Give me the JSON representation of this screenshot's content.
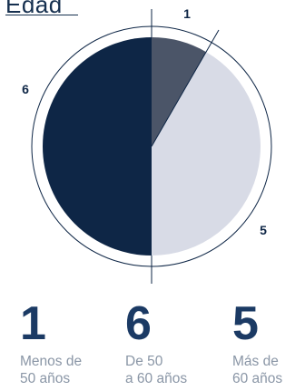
{
  "title": "Edad",
  "colors": {
    "dark": "#0e2646",
    "gray": "#4b5568",
    "light": "#d8dbe6",
    "ring": "#0e2646"
  },
  "chart_data": {
    "type": "pie",
    "title": "Edad",
    "slices": [
      {
        "label": "Menos de 50 años",
        "value": 1,
        "color": "#4b5568"
      },
      {
        "label": "Más de 60 años",
        "value": 5,
        "color": "#d8dbe6"
      },
      {
        "label": "De 50 a 60 años",
        "value": 6,
        "color": "#0e2646"
      }
    ],
    "slice_value_labels": [
      "1",
      "5",
      "6"
    ]
  },
  "stats": [
    {
      "number": "1",
      "label": "Menos de\n50 años"
    },
    {
      "number": "6",
      "label": "De 50\na 60 años"
    },
    {
      "number": "5",
      "label": "Más de\n60 años"
    }
  ]
}
